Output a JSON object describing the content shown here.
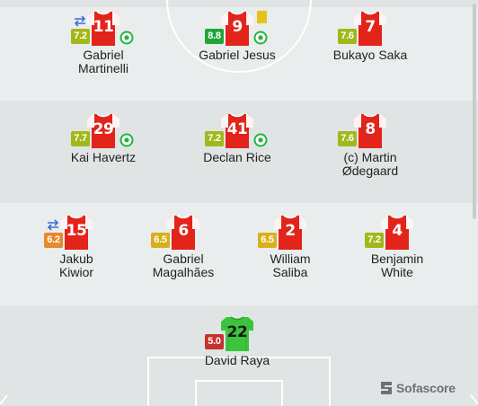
{
  "colors": {
    "stripe_light": "#eaeded",
    "stripe_dark": "#e0e4e4",
    "pitch_lines": "#ffffff",
    "kit_outfield": "#e2241b",
    "kit_sleeve": "#ffffff",
    "kit_gk": "#3cc43c",
    "goal_ball": "#21b53e"
  },
  "players": [
    {
      "id": "martinelli",
      "number": "11",
      "rating": "7.2",
      "rating_color": "#a2b81a",
      "name_lines": [
        "Gabriel",
        "Martinelli"
      ],
      "goal": true,
      "sub": true,
      "yellow_card": false,
      "gk": false
    },
    {
      "id": "jesus",
      "number": "9",
      "rating": "8.8",
      "rating_color": "#1fa53b",
      "name_lines": [
        "Gabriel Jesus"
      ],
      "goal": true,
      "sub": false,
      "yellow_card": true,
      "gk": false
    },
    {
      "id": "saka",
      "number": "7",
      "rating": "7.6",
      "rating_color": "#a2b81a",
      "name_lines": [
        "Bukayo Saka"
      ],
      "goal": false,
      "sub": false,
      "yellow_card": false,
      "gk": false
    },
    {
      "id": "havertz",
      "number": "29",
      "rating": "7.7",
      "rating_color": "#a2b81a",
      "name_lines": [
        "Kai Havertz"
      ],
      "goal": true,
      "sub": false,
      "yellow_card": false,
      "gk": false
    },
    {
      "id": "rice",
      "number": "41",
      "rating": "7.2",
      "rating_color": "#a2b81a",
      "name_lines": [
        "Declan Rice"
      ],
      "goal": true,
      "sub": false,
      "yellow_card": false,
      "gk": false
    },
    {
      "id": "odegaard",
      "number": "8",
      "rating": "7.6",
      "rating_color": "#a2b81a",
      "name_lines": [
        "(c) Martin",
        "Ødegaard"
      ],
      "goal": false,
      "sub": false,
      "yellow_card": false,
      "gk": false
    },
    {
      "id": "kiwior",
      "number": "15",
      "rating": "6.2",
      "rating_color": "#e8892b",
      "name_lines": [
        "Jakub",
        "Kiwior"
      ],
      "goal": false,
      "sub": true,
      "yellow_card": false,
      "gk": false
    },
    {
      "id": "magalhaes",
      "number": "6",
      "rating": "6.5",
      "rating_color": "#d9b01a",
      "name_lines": [
        "Gabriel",
        "Magalhães"
      ],
      "goal": false,
      "sub": false,
      "yellow_card": false,
      "gk": false
    },
    {
      "id": "saliba",
      "number": "2",
      "rating": "6.5",
      "rating_color": "#d9b01a",
      "name_lines": [
        "William",
        "Saliba"
      ],
      "goal": false,
      "sub": false,
      "yellow_card": false,
      "gk": false
    },
    {
      "id": "white",
      "number": "4",
      "rating": "7.2",
      "rating_color": "#a2b81a",
      "name_lines": [
        "Benjamin",
        "White"
      ],
      "goal": false,
      "sub": false,
      "yellow_card": false,
      "gk": false
    },
    {
      "id": "raya",
      "number": "22",
      "rating": "5.0",
      "rating_color": "#c8302c",
      "name_lines": [
        "David Raya"
      ],
      "goal": false,
      "sub": false,
      "yellow_card": false,
      "gk": true
    }
  ],
  "brand": {
    "name": "Sofascore",
    "logo_icon": "sofascore-logo-icon"
  }
}
